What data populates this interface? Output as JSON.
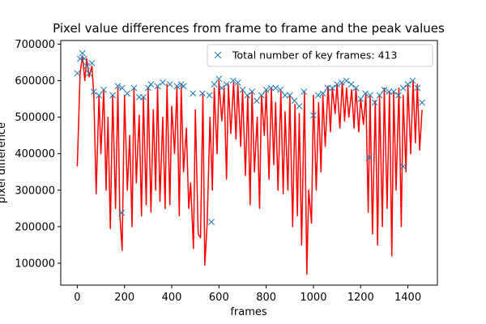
{
  "chart_data": {
    "type": "line",
    "title": "Pixel value differences from frame to frame and the peak values",
    "xlabel": "frames",
    "ylabel": "pixel difference",
    "xlim": [
      -70,
      1525
    ],
    "ylim": [
      40000,
      710000
    ],
    "x_ticks": [
      0,
      200,
      400,
      600,
      800,
      1000,
      1200,
      1400
    ],
    "y_ticks": [
      100000,
      200000,
      300000,
      400000,
      500000,
      600000,
      700000
    ],
    "legend": {
      "placement": "top-right",
      "label": "Total number of key frames: 413"
    },
    "series": [
      {
        "kind": "line",
        "color": "#ff0000",
        "x": [
          0,
          12,
          22,
          32,
          40,
          50,
          62,
          70,
          80,
          92,
          100,
          112,
          122,
          130,
          140,
          150,
          162,
          172,
          180,
          190,
          200,
          212,
          222,
          232,
          240,
          250,
          262,
          272,
          280,
          292,
          300,
          312,
          322,
          332,
          340,
          350,
          362,
          372,
          380,
          392,
          400,
          412,
          422,
          432,
          440,
          450,
          462,
          472,
          480,
          492,
          500,
          512,
          522,
          532,
          540,
          550,
          562,
          572,
          580,
          592,
          600,
          612,
          622,
          632,
          640,
          650,
          662,
          672,
          680,
          692,
          700,
          712,
          722,
          732,
          740,
          750,
          762,
          772,
          780,
          792,
          800,
          812,
          822,
          832,
          840,
          850,
          862,
          872,
          880,
          892,
          900,
          912,
          922,
          932,
          940,
          950,
          962,
          972,
          980,
          992,
          1000,
          1012,
          1022,
          1032,
          1040,
          1050,
          1062,
          1072,
          1080,
          1092,
          1100,
          1112,
          1122,
          1132,
          1140,
          1150,
          1162,
          1172,
          1180,
          1192,
          1200,
          1212,
          1222,
          1232,
          1240,
          1250,
          1262,
          1272,
          1280,
          1292,
          1300,
          1312,
          1322,
          1332,
          1340,
          1350,
          1362,
          1372,
          1380,
          1392,
          1400,
          1412,
          1422,
          1432,
          1440,
          1450,
          1460
        ],
        "y": [
          365000,
          620000,
          668000,
          600000,
          660000,
          610000,
          640000,
          560000,
          290000,
          560000,
          400000,
          575000,
          300000,
          500000,
          195000,
          560000,
          250000,
          580000,
          235000,
          135000,
          560000,
          300000,
          450000,
          200000,
          580000,
          320000,
          505000,
          230000,
          555000,
          260000,
          580000,
          240000,
          520000,
          300000,
          585000,
          270000,
          500000,
          250000,
          590000,
          260000,
          530000,
          400000,
          585000,
          230000,
          585000,
          350000,
          470000,
          250000,
          320000,
          140000,
          520000,
          180000,
          170000,
          565000,
          95000,
          210000,
          500000,
          300000,
          580000,
          400000,
          600000,
          490000,
          580000,
          330000,
          590000,
          455000,
          595000,
          440000,
          590000,
          420000,
          575000,
          340000,
          560000,
          260000,
          570000,
          350000,
          500000,
          250000,
          560000,
          450000,
          575000,
          330000,
          580000,
          370000,
          540000,
          300000,
          570000,
          290000,
          515000,
          300000,
          560000,
          200000,
          535000,
          230000,
          510000,
          150000,
          570000,
          70000,
          300000,
          210000,
          560000,
          300000,
          540000,
          350000,
          560000,
          420000,
          585000,
          460000,
          580000,
          510000,
          590000,
          470000,
          595000,
          490000,
          580000,
          500000,
          575000,
          470000,
          580000,
          460000,
          550000,
          480000,
          565000,
          240000,
          560000,
          180000,
          545000,
          150000,
          560000,
          200000,
          580000,
          250000,
          570000,
          120000,
          570000,
          300000,
          580000,
          200000,
          560000,
          350000,
          590000,
          400000,
          600000,
          430000,
          590000,
          410000,
          520000
        ]
      },
      {
        "kind": "scatter",
        "marker": "x",
        "color": "#1f77b4",
        "name": "Total number of key frames: 413",
        "x": [
          0,
          12,
          22,
          30,
          40,
          50,
          62,
          70,
          92,
          112,
          150,
          172,
          190,
          212,
          240,
          262,
          280,
          300,
          312,
          340,
          362,
          392,
          422,
          440,
          450,
          490,
          530,
          560,
          580,
          600,
          612,
          632,
          660,
          680,
          700,
          720,
          740,
          760,
          780,
          800,
          820,
          840,
          860,
          880,
          900,
          920,
          940,
          960,
          1000,
          1020,
          1040,
          1060,
          1080,
          1100,
          1120,
          1140,
          1160,
          1180,
          1200,
          1220,
          1240,
          1260,
          1280,
          1300,
          1320,
          1340,
          1360,
          1380,
          1400,
          1420,
          1440,
          1460,
          188,
          568,
          1236,
          1380
        ],
        "y": [
          620000,
          660000,
          675000,
          660000,
          640000,
          620000,
          648000,
          570000,
          560000,
          575000,
          560000,
          585000,
          580000,
          565000,
          580000,
          555000,
          555000,
          580000,
          590000,
          585000,
          595000,
          590000,
          585000,
          590000,
          585000,
          565000,
          565000,
          560000,
          590000,
          605000,
          580000,
          590000,
          600000,
          595000,
          575000,
          560000,
          570000,
          545000,
          560000,
          575000,
          580000,
          580000,
          575000,
          560000,
          560000,
          545000,
          530000,
          570000,
          505000,
          560000,
          565000,
          580000,
          580000,
          590000,
          595000,
          600000,
          590000,
          580000,
          550000,
          565000,
          560000,
          540000,
          560000,
          575000,
          570000,
          570000,
          560000,
          580000,
          590000,
          600000,
          580000,
          540000,
          238000,
          213000,
          390000,
          365000
        ]
      }
    ]
  }
}
